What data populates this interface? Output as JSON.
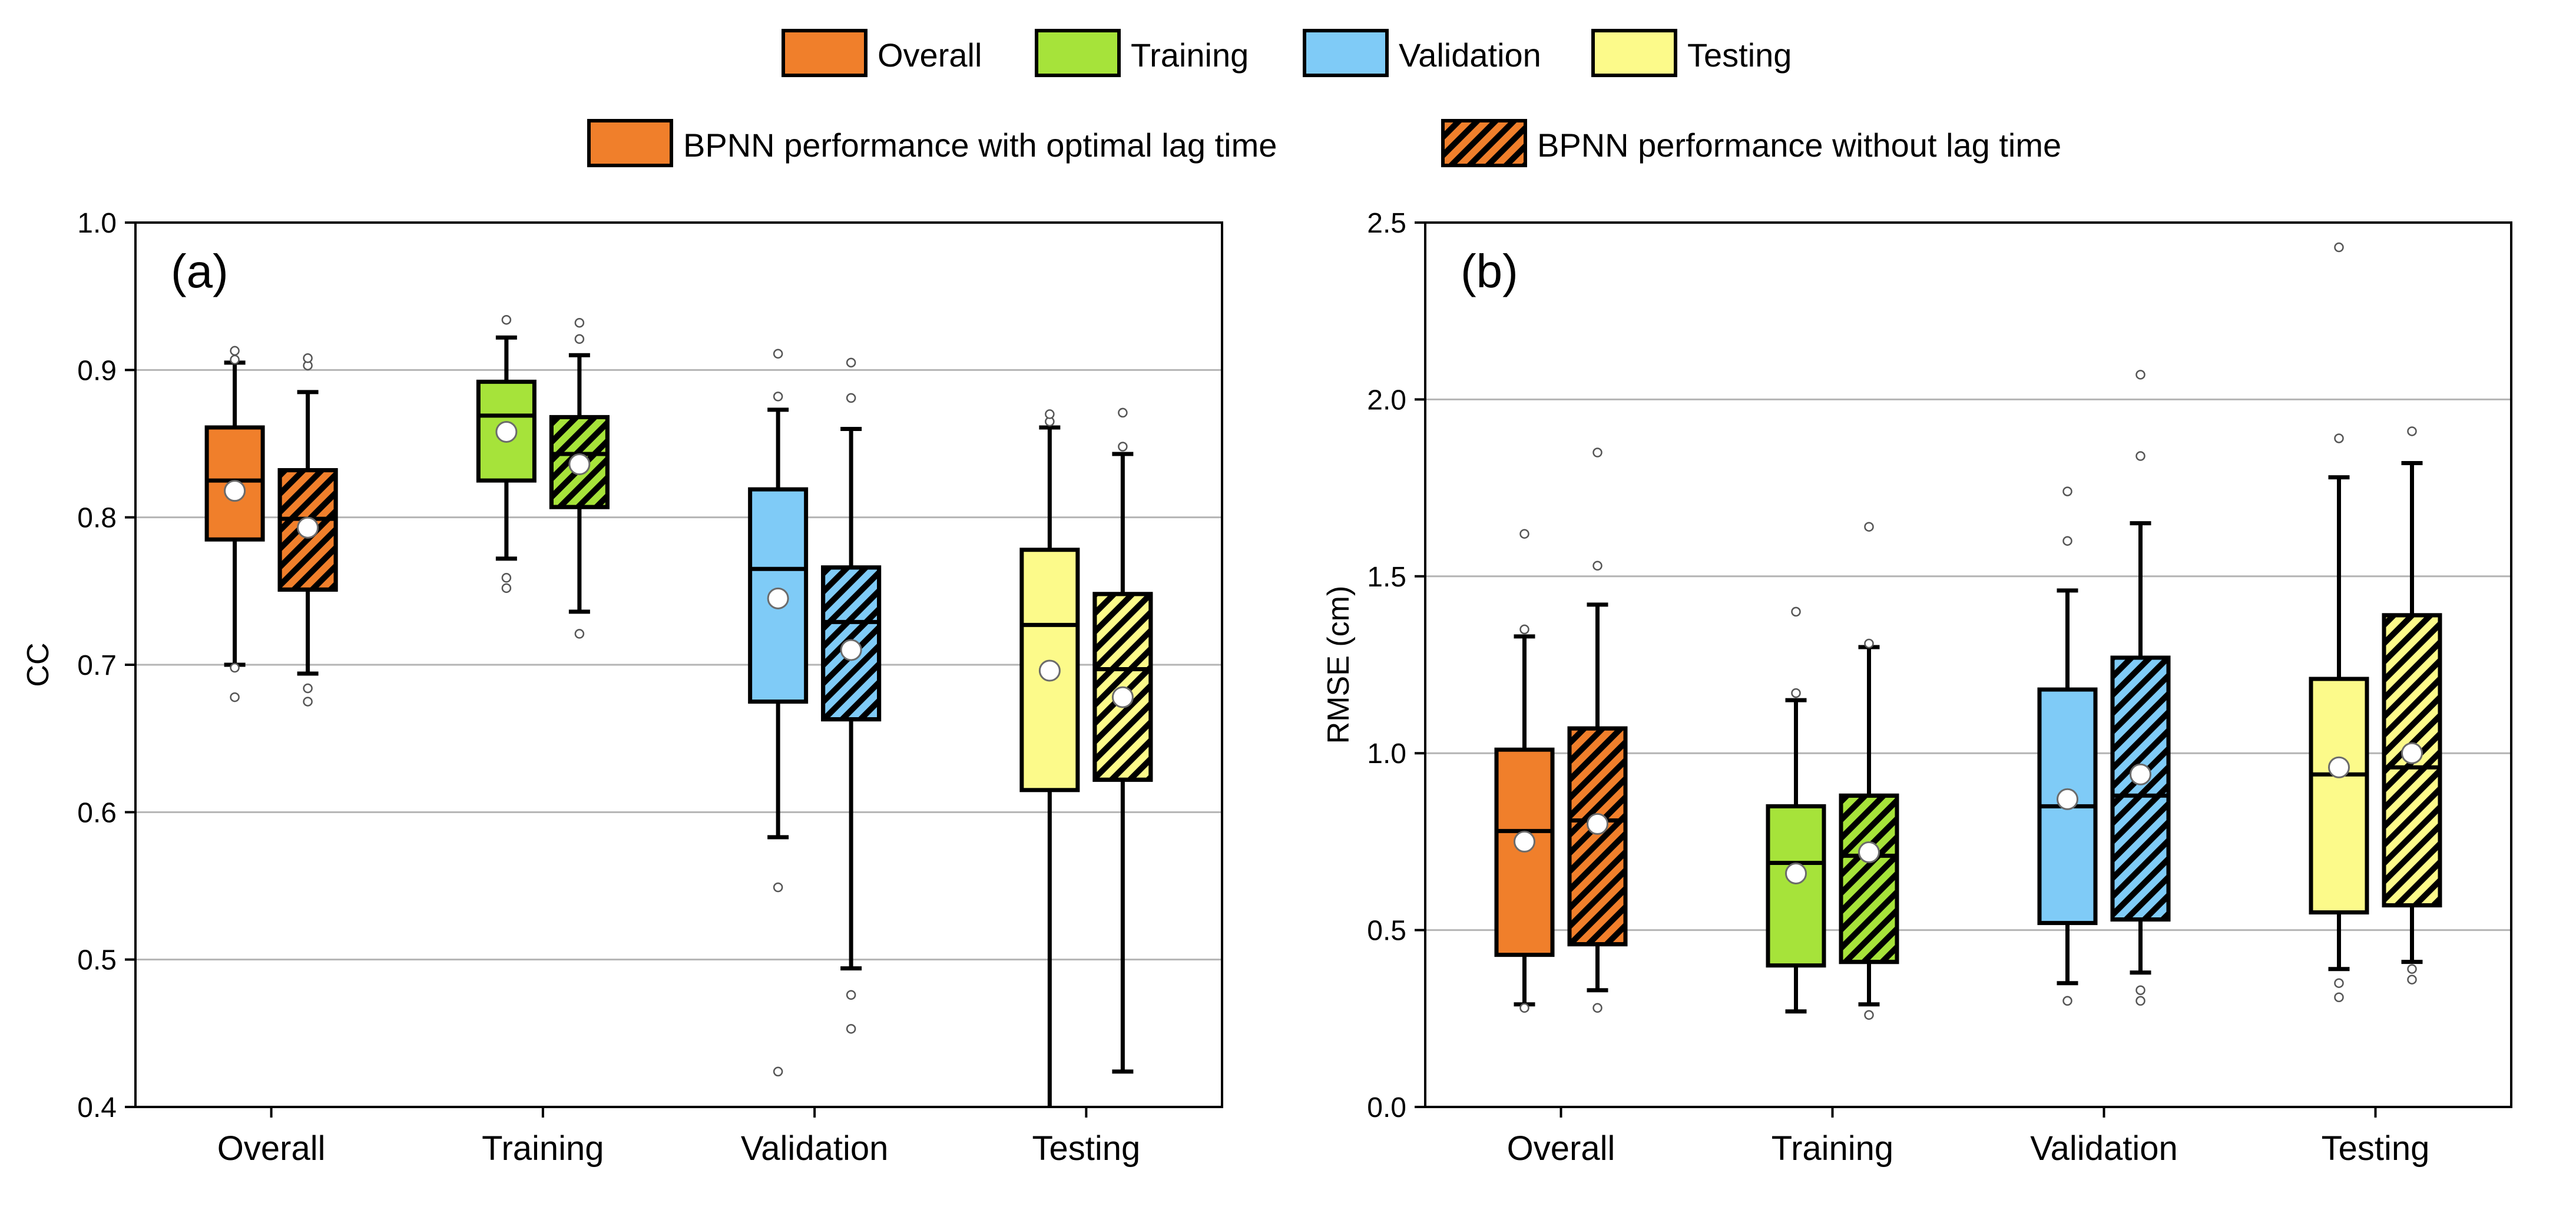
{
  "legend": {
    "groups": [
      {
        "label": "Overall",
        "color": "#F07F2B"
      },
      {
        "label": "Training",
        "color": "#A6E33A"
      },
      {
        "label": "Validation",
        "color": "#7FCBF7"
      },
      {
        "label": "Testing",
        "color": "#FCFA8A"
      }
    ],
    "styles": [
      {
        "label": "BPNN performance with optimal lag time",
        "hatched": false
      },
      {
        "label": "BPNN performance without lag time",
        "hatched": true
      }
    ]
  },
  "chart_data": [
    {
      "type": "box",
      "panel_label": "(a)",
      "ylabel": "CC",
      "ylim": [
        0.4,
        1.0
      ],
      "yticks": [
        "0.4",
        "0.5",
        "0.6",
        "0.7",
        "0.8",
        "0.9",
        "1.0"
      ],
      "ytick_values": [
        0.4,
        0.5,
        0.6,
        0.7,
        0.8,
        0.9,
        1.0
      ],
      "grid": true,
      "categories": [
        "Overall",
        "Training",
        "Validation",
        "Testing"
      ],
      "series": [
        {
          "name": "BPNN performance with optimal lag time",
          "hatched": false,
          "boxes": [
            {
              "whisker_low": 0.7,
              "q1": 0.785,
              "median": 0.825,
              "q3": 0.861,
              "whisker_high": 0.905,
              "mean": 0.818,
              "outliers": [
                0.678,
                0.698,
                0.907,
                0.913
              ]
            },
            {
              "whisker_low": 0.772,
              "q1": 0.825,
              "median": 0.869,
              "q3": 0.892,
              "whisker_high": 0.922,
              "mean": 0.858,
              "outliers": [
                0.752,
                0.759,
                0.934
              ]
            },
            {
              "whisker_low": 0.583,
              "q1": 0.675,
              "median": 0.765,
              "q3": 0.819,
              "whisker_high": 0.873,
              "mean": 0.745,
              "outliers": [
                0.424,
                0.549,
                0.882,
                0.911
              ]
            },
            {
              "whisker_low": 0.4,
              "q1": 0.615,
              "median": 0.727,
              "q3": 0.778,
              "whisker_high": 0.861,
              "mean": 0.696,
              "outliers": [
                0.865,
                0.87
              ]
            }
          ]
        },
        {
          "name": "BPNN performance without lag time",
          "hatched": true,
          "boxes": [
            {
              "whisker_low": 0.694,
              "q1": 0.751,
              "median": 0.799,
              "q3": 0.832,
              "whisker_high": 0.885,
              "mean": 0.793,
              "outliers": [
                0.675,
                0.684,
                0.903,
                0.908
              ]
            },
            {
              "whisker_low": 0.736,
              "q1": 0.807,
              "median": 0.843,
              "q3": 0.868,
              "whisker_high": 0.91,
              "mean": 0.836,
              "outliers": [
                0.721,
                0.921,
                0.932
              ]
            },
            {
              "whisker_low": 0.494,
              "q1": 0.663,
              "median": 0.729,
              "q3": 0.766,
              "whisker_high": 0.86,
              "mean": 0.71,
              "outliers": [
                0.453,
                0.476,
                0.881,
                0.905
              ]
            },
            {
              "whisker_low": 0.424,
              "q1": 0.622,
              "median": 0.697,
              "q3": 0.748,
              "whisker_high": 0.843,
              "mean": 0.678,
              "outliers": [
                0.848,
                0.871
              ]
            }
          ]
        }
      ]
    },
    {
      "type": "box",
      "panel_label": "(b)",
      "ylabel": "RMSE (cm)",
      "ylim": [
        0.0,
        2.5
      ],
      "yticks": [
        "0.0",
        "0.5",
        "1.0",
        "1.5",
        "2.0",
        "2.5"
      ],
      "ytick_values": [
        0.0,
        0.5,
        1.0,
        1.5,
        2.0,
        2.5
      ],
      "grid": true,
      "categories": [
        "Overall",
        "Training",
        "Validation",
        "Testing"
      ],
      "series": [
        {
          "name": "BPNN performance with optimal lag time",
          "hatched": false,
          "boxes": [
            {
              "whisker_low": 0.29,
              "q1": 0.43,
              "median": 0.78,
              "q3": 1.01,
              "whisker_high": 1.33,
              "mean": 0.75,
              "outliers": [
                0.28,
                1.35,
                1.62
              ]
            },
            {
              "whisker_low": 0.27,
              "q1": 0.4,
              "median": 0.69,
              "q3": 0.85,
              "whisker_high": 1.15,
              "mean": 0.66,
              "outliers": [
                1.17,
                1.4
              ]
            },
            {
              "whisker_low": 0.35,
              "q1": 0.52,
              "median": 0.85,
              "q3": 1.18,
              "whisker_high": 1.46,
              "mean": 0.87,
              "outliers": [
                0.3,
                1.6,
                1.74
              ]
            },
            {
              "whisker_low": 0.39,
              "q1": 0.55,
              "median": 0.94,
              "q3": 1.21,
              "whisker_high": 1.78,
              "mean": 0.96,
              "outliers": [
                0.31,
                0.35,
                1.89,
                2.43
              ]
            }
          ]
        },
        {
          "name": "BPNN performance without lag time",
          "hatched": true,
          "boxes": [
            {
              "whisker_low": 0.33,
              "q1": 0.46,
              "median": 0.81,
              "q3": 1.07,
              "whisker_high": 1.42,
              "mean": 0.8,
              "outliers": [
                0.28,
                1.53,
                1.85
              ]
            },
            {
              "whisker_low": 0.29,
              "q1": 0.41,
              "median": 0.71,
              "q3": 0.88,
              "whisker_high": 1.3,
              "mean": 0.72,
              "outliers": [
                0.26,
                1.31,
                1.64
              ]
            },
            {
              "whisker_low": 0.38,
              "q1": 0.53,
              "median": 0.88,
              "q3": 1.27,
              "whisker_high": 1.65,
              "mean": 0.94,
              "outliers": [
                0.3,
                0.33,
                1.84,
                2.07
              ]
            },
            {
              "whisker_low": 0.41,
              "q1": 0.57,
              "median": 0.96,
              "q3": 1.39,
              "whisker_high": 1.82,
              "mean": 1.0,
              "outliers": [
                0.36,
                0.39,
                1.91
              ]
            }
          ]
        }
      ]
    }
  ]
}
